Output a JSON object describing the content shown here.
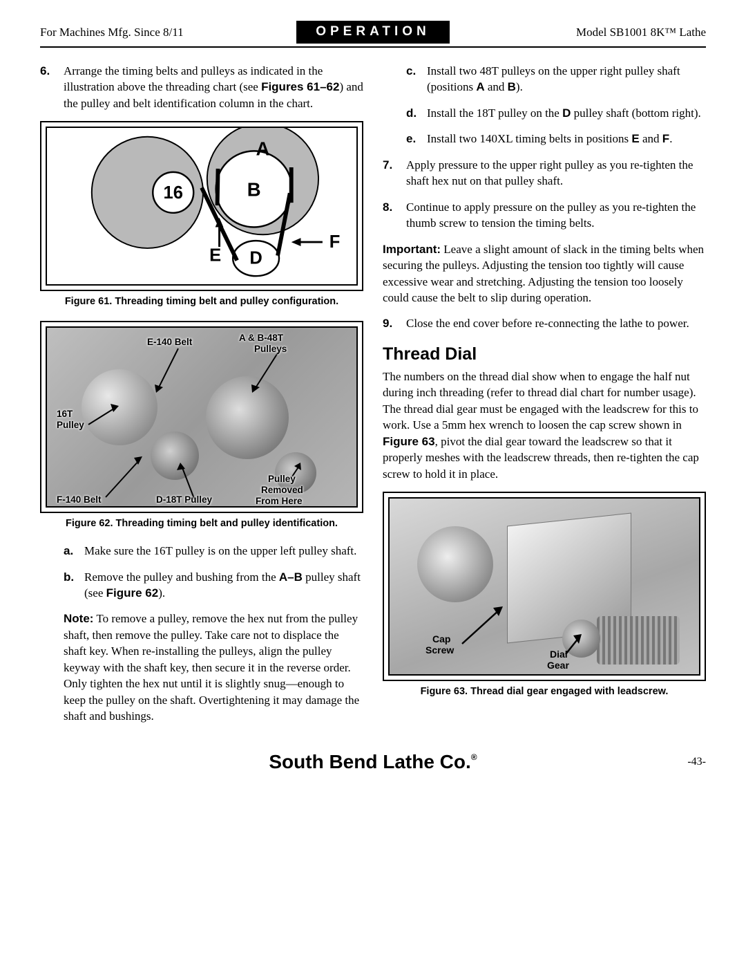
{
  "header": {
    "left": "For Machines Mfg. Since 8/11",
    "center": "OPERATION",
    "right": "Model SB1001 8K™ Lathe"
  },
  "left_col": {
    "step6_num": "6.",
    "step6_html": "Arrange the timing belts and pulleys as indicated in the illustration above the threading chart (see <b>Figures 61–62</b>) and the pulley and belt identification column in the chart.",
    "fig61": {
      "caption": "Figure 61. Threading timing belt and pulley configuration.",
      "labels": {
        "A": "A",
        "B": "B",
        "sixteen": "16",
        "D": "D",
        "E": "E",
        "F": "F"
      },
      "colors": {
        "pulley_fill": "#b9b9b9",
        "line": "#000000",
        "bg": "#ffffff"
      }
    },
    "fig62": {
      "caption": "Figure 62. Threading timing belt and pulley identification.",
      "labels": {
        "e140": "E-140 Belt",
        "ab48t": "A & B-48T",
        "pulleys": "Pulleys",
        "sixteenT": "16T",
        "pulley": "Pulley",
        "f140": "F-140 Belt",
        "d18t": "D-18T Pulley",
        "pulley_removed": "Pulley",
        "removed": "Removed",
        "from_here": "From Here"
      }
    },
    "sub_a_num": "a.",
    "sub_a": "Make sure the 16T pulley is on the upper left pulley shaft.",
    "sub_b_num": "b.",
    "sub_b_html": "Remove the pulley and bushing from the <b>A–B</b> pulley shaft (see <b>Figure 62</b>).",
    "note_html": "<b>Note:</b> To remove a pulley, remove the hex nut from the pulley shaft, then remove the pulley. Take care not to displace the shaft key. When re-installing the pulleys, align the pulley keyway with the shaft key, then secure it in the reverse order. Only tighten the hex nut until it is slightly snug—enough to keep the pulley on the shaft. Overtightening it may damage the shaft and bushings."
  },
  "right_col": {
    "sub_c_num": "c.",
    "sub_c_html": "Install two 48T pulleys on the upper right pulley shaft (positions <b>A</b> and <b>B</b>).",
    "sub_d_num": "d.",
    "sub_d_html": "Install the 18T pulley on the <b>D</b> pulley shaft (bottom right).",
    "sub_e_num": "e.",
    "sub_e_html": "Install two 140XL timing belts in positions <b>E</b> and <b>F</b>.",
    "step7_num": "7.",
    "step7": "Apply pressure to the upper right pulley as you re-tighten the shaft hex nut on that pulley shaft.",
    "step8_num": "8.",
    "step8": "Continue to apply pressure on the pulley as you re-tighten the thumb screw to tension the timing belts.",
    "important_html": "<b>Important:</b> Leave a slight amount of slack in the timing belts when securing the pulleys. Adjusting the tension too tightly will cause excessive wear and stretching. Adjusting the tension too loosely could cause the belt to slip during operation.",
    "step9_num": "9.",
    "step9": "Close the end cover before re-connecting the lathe to power.",
    "section_heading": "Thread Dial",
    "thread_dial_para_html": "The numbers on the thread dial show when to engage the half nut during inch threading (refer to thread dial chart for number usage). The thread dial gear must be engaged with the leadscrew for this to work. Use a 5mm hex wrench to loosen the cap screw shown in <b>Figure 63</b>, pivot the dial gear toward the leadscrew so that it properly meshes with the leadscrew threads, then re-tighten the cap screw to hold it in place.",
    "fig63": {
      "caption": "Figure 63. Thread dial gear engaged with leadscrew.",
      "labels": {
        "cap": "Cap",
        "screw": "Screw",
        "dial": "Dial",
        "gear": "Gear"
      }
    }
  },
  "footer": {
    "brand": "South Bend Lathe Co.",
    "page": "-43-"
  }
}
